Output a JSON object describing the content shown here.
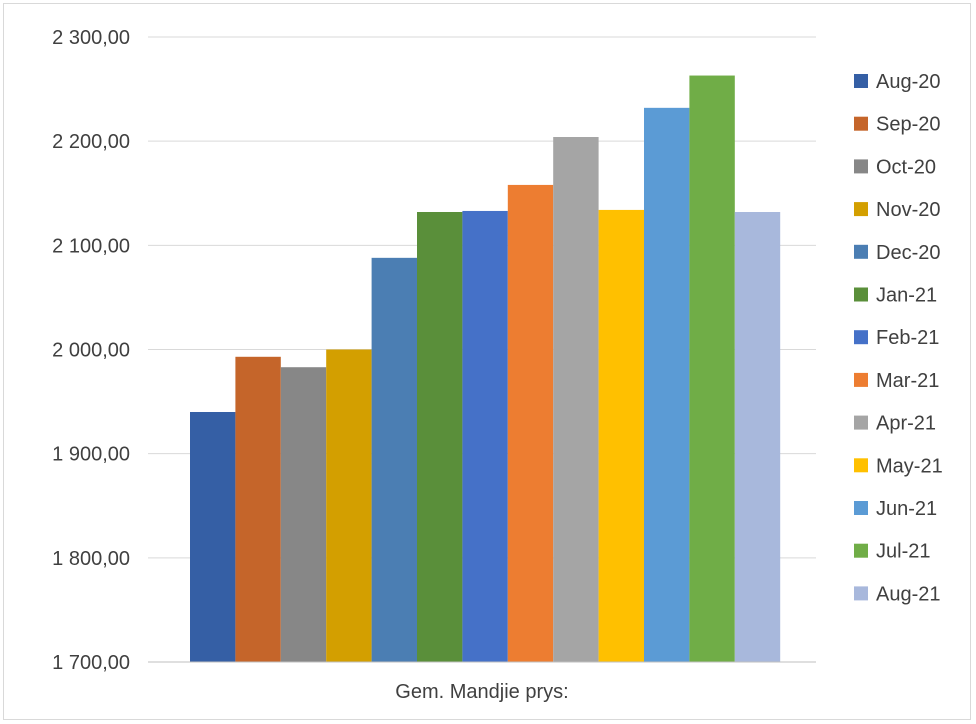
{
  "chart_data": {
    "type": "bar",
    "title": "",
    "xlabel": "",
    "ylabel": "",
    "categories": [
      "Gem. Mandjie prys:"
    ],
    "series": [
      {
        "name": "Aug-20",
        "values": [
          1940.0
        ],
        "color": "#355FA5"
      },
      {
        "name": "Sep-20",
        "values": [
          1993.0
        ],
        "color": "#C5652A"
      },
      {
        "name": "Oct-20",
        "values": [
          1983.0
        ],
        "color": "#878787"
      },
      {
        "name": "Nov-20",
        "values": [
          2000.0
        ],
        "color": "#D39F00"
      },
      {
        "name": "Dec-20",
        "values": [
          2088.0
        ],
        "color": "#4B7EB3"
      },
      {
        "name": "Jan-21",
        "values": [
          2132.0
        ],
        "color": "#5A8F3A"
      },
      {
        "name": "Feb-21",
        "values": [
          2133.0
        ],
        "color": "#4571C8"
      },
      {
        "name": "Mar-21",
        "values": [
          2158.0
        ],
        "color": "#ED7D31"
      },
      {
        "name": "Apr-21",
        "values": [
          2204.0
        ],
        "color": "#A5A5A5"
      },
      {
        "name": "May-21",
        "values": [
          2134.0
        ],
        "color": "#FFC000"
      },
      {
        "name": "Jun-21",
        "values": [
          2232.0
        ],
        "color": "#5B9BD5"
      },
      {
        "name": "Jul-21",
        "values": [
          2263.0
        ],
        "color": "#70AD47"
      },
      {
        "name": "Aug-21",
        "values": [
          2132.0
        ],
        "color": "#A8B8DC"
      }
    ],
    "ylim": [
      1700,
      2300
    ],
    "yticks": [
      1700,
      1800,
      1900,
      2000,
      2100,
      2200,
      2300
    ],
    "ytick_labels": [
      "1 700,00",
      "1 800,00",
      "1 900,00",
      "2 000,00",
      "2 100,00",
      "2 200,00",
      "2 300,00"
    ],
    "grid": true,
    "legend_position": "right"
  }
}
